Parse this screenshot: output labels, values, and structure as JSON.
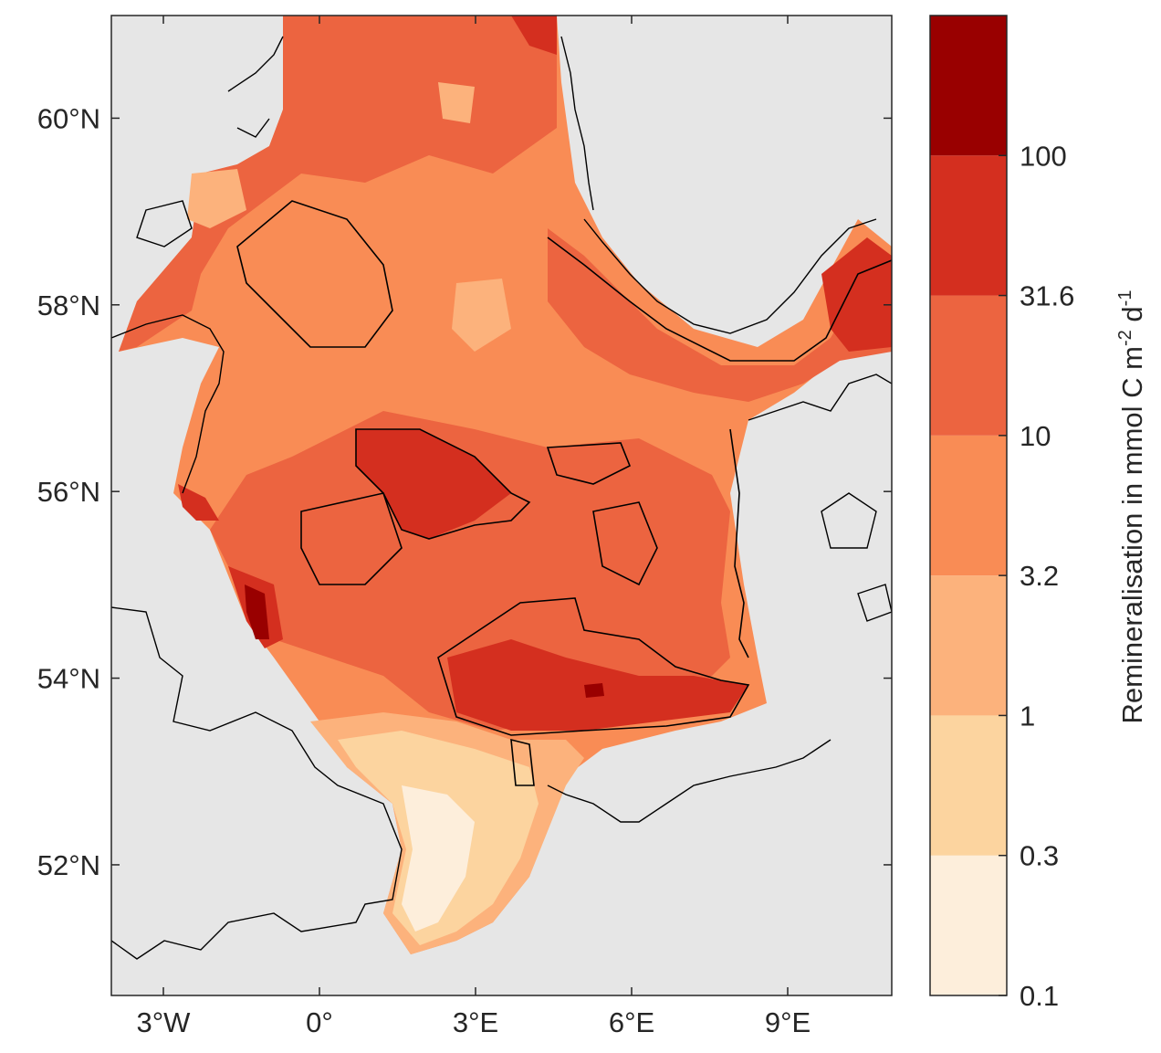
{
  "map": {
    "region": "North Sea",
    "lon_range": [
      -4,
      11
    ],
    "lat_range": [
      50.6,
      61.1
    ],
    "lon_ticks": [
      {
        "value": -3,
        "label": "3°W"
      },
      {
        "value": 0,
        "label": "0°"
      },
      {
        "value": 3,
        "label": "3°E"
      },
      {
        "value": 6,
        "label": "6°E"
      },
      {
        "value": 9,
        "label": "9°E"
      }
    ],
    "lat_ticks": [
      {
        "value": 60,
        "label": "60°N"
      },
      {
        "value": 58,
        "label": "58°N"
      },
      {
        "value": 56,
        "label": "56°N"
      },
      {
        "value": 54,
        "label": "54°N"
      },
      {
        "value": 52,
        "label": "52°N"
      }
    ],
    "land_color": "#e6e6e6",
    "coastline_color": "#000000"
  },
  "colorbar": {
    "title_prefix": "Remineralisation in mmol C m",
    "title_exp1": "-2",
    "title_mid": " d",
    "title_exp2": "-1",
    "levels": [
      "0.1",
      "0.3",
      "1",
      "3.2",
      "10",
      "31.6",
      "100"
    ],
    "colors": [
      "#fdeedb",
      "#fcd49f",
      "#fcb27c",
      "#f98c55",
      "#ec6440",
      "#d42f1f",
      "#990000"
    ]
  }
}
